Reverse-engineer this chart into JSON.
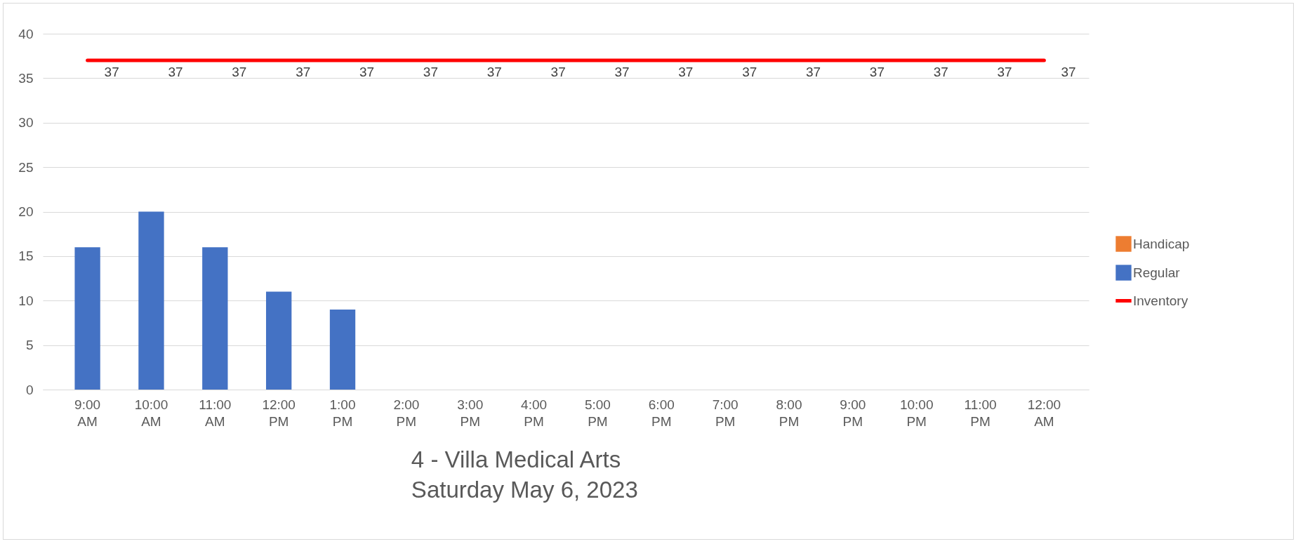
{
  "chart_data": {
    "type": "bar",
    "title": "4 - Villa Medical Arts",
    "subtitle": "Saturday May 6, 2023",
    "categories": [
      "9:00 AM",
      "10:00 AM",
      "11:00 AM",
      "12:00 PM",
      "1:00 PM",
      "2:00 PM",
      "3:00 PM",
      "4:00 PM",
      "5:00 PM",
      "6:00 PM",
      "7:00 PM",
      "8:00 PM",
      "9:00 PM",
      "10:00 PM",
      "11:00 PM",
      "12:00 AM"
    ],
    "series": [
      {
        "name": "Regular",
        "color": "#4472c4",
        "values": [
          16,
          20,
          16,
          11,
          9,
          0,
          0,
          0,
          0,
          0,
          0,
          0,
          0,
          0,
          0,
          0
        ]
      },
      {
        "name": "Handicap",
        "color": "#ed7d31",
        "values": [
          0,
          0,
          0,
          0,
          0,
          0,
          0,
          0,
          0,
          0,
          0,
          0,
          0,
          0,
          0,
          0
        ]
      },
      {
        "name": "Inventory",
        "type": "line",
        "color": "#ff0000",
        "values": [
          37,
          37,
          37,
          37,
          37,
          37,
          37,
          37,
          37,
          37,
          37,
          37,
          37,
          37,
          37,
          37
        ],
        "value_labels": [
          "37",
          "37",
          "37",
          "37",
          "37",
          "37",
          "37",
          "37",
          "37",
          "37",
          "37",
          "37",
          "37",
          "37",
          "37",
          "37"
        ]
      }
    ],
    "ylim": [
      0,
      40
    ],
    "yticks": [
      0,
      5,
      10,
      15,
      20,
      25,
      30,
      35,
      40
    ],
    "grid": "y",
    "legend": "right",
    "marker": "none"
  }
}
